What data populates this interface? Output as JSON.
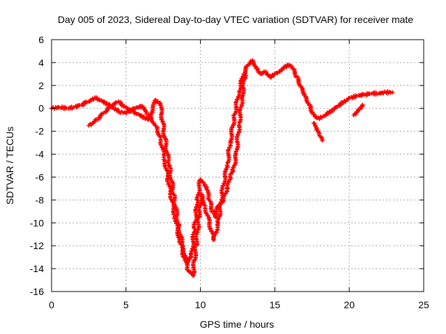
{
  "chart_data": {
    "type": "scatter",
    "title": "Day 005 of 2023, Sidereal Day-to-day VTEC variation (SDTVAR) for receiver mate",
    "xlabel": "GPS time / hours",
    "ylabel": "SDTVAR / TECUs",
    "xlim": [
      0,
      25
    ],
    "ylim": [
      -16,
      6
    ],
    "xticks": [
      0,
      5,
      10,
      15,
      20,
      25
    ],
    "yticks": [
      -16,
      -14,
      -12,
      -10,
      -8,
      -6,
      -4,
      -2,
      0,
      2,
      4,
      6
    ],
    "grid": true,
    "marker": "+",
    "series_color": "#ff0000",
    "series": [
      {
        "name": "main_track",
        "x": [
          0.0,
          0.5,
          1.0,
          1.5,
          2.0,
          2.5,
          3.0,
          3.5,
          4.0,
          4.5,
          5.0,
          5.5,
          6.0,
          6.5,
          7.0,
          7.3,
          7.6,
          7.8,
          8.0,
          8.3,
          8.6,
          8.9,
          9.2,
          9.5,
          9.7,
          9.9,
          10.1,
          10.3,
          10.6,
          10.9,
          11.2,
          11.5,
          11.8,
          12.0,
          12.3,
          12.6,
          12.9,
          13.2,
          13.5,
          13.8,
          14.1,
          14.4,
          14.7,
          15.0,
          15.3,
          15.6,
          15.9,
          16.2,
          16.5,
          16.8,
          17.1,
          17.4,
          17.7,
          18.0,
          18.5,
          19.0,
          19.5,
          20.0,
          20.5,
          21.0,
          21.5,
          22.0,
          22.5,
          22.9
        ],
        "y": [
          0.0,
          0.1,
          0.0,
          0.1,
          0.3,
          0.6,
          0.9,
          0.6,
          0.2,
          -0.3,
          -0.4,
          0.0,
          0.2,
          -0.5,
          -1.5,
          -2.5,
          -4.5,
          -6.0,
          -7.5,
          -9.5,
          -11.5,
          -13.0,
          -14.2,
          -14.6,
          -12.0,
          -9.5,
          -7.5,
          -8.5,
          -10.0,
          -11.5,
          -10.0,
          -7.0,
          -5.0,
          -3.0,
          -0.5,
          1.5,
          3.0,
          3.8,
          4.2,
          3.5,
          3.0,
          3.2,
          2.7,
          3.0,
          3.2,
          3.6,
          3.8,
          3.5,
          2.7,
          1.8,
          1.0,
          0.0,
          -0.7,
          -0.9,
          -0.5,
          0.0,
          0.5,
          0.9,
          1.1,
          1.2,
          1.3,
          1.3,
          1.4,
          1.4
        ]
      },
      {
        "name": "secondary_track",
        "x": [
          2.5,
          3.0,
          3.5,
          4.0,
          4.5,
          5.0,
          5.5,
          6.0,
          6.5,
          7.0,
          7.3,
          7.6,
          7.9,
          8.2,
          8.5,
          8.8,
          9.1,
          9.4,
          9.6,
          9.8,
          10.0,
          10.2,
          10.4,
          10.6,
          10.8,
          11.0,
          11.2,
          11.5,
          11.8,
          12.0,
          12.2,
          12.4,
          12.6,
          12.8,
          13.0
        ],
        "y": [
          -1.5,
          -1.0,
          -0.4,
          0.2,
          0.6,
          0.1,
          -0.3,
          -0.6,
          -1.0,
          0.7,
          0.4,
          -2.5,
          -5.0,
          -7.5,
          -10.0,
          -12.0,
          -13.5,
          -13.0,
          -10.5,
          -8.0,
          -6.2,
          -6.5,
          -7.0,
          -8.0,
          -9.0,
          -9.5,
          -8.5,
          -8.2,
          -7.0,
          -6.0,
          -5.5,
          -4.0,
          -1.5,
          1.0,
          3.0
        ]
      },
      {
        "name": "fragment_18h",
        "x": [
          17.6,
          17.8,
          18.0,
          18.2
        ],
        "y": [
          -1.3,
          -1.9,
          -2.4,
          -2.8
        ]
      },
      {
        "name": "fragment_21h",
        "x": [
          20.3,
          20.6,
          20.9
        ],
        "y": [
          -0.6,
          -0.1,
          0.3
        ]
      }
    ]
  }
}
